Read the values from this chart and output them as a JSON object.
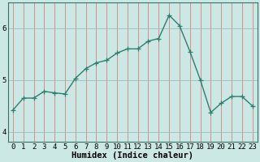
{
  "x": [
    0,
    1,
    2,
    3,
    4,
    5,
    6,
    7,
    8,
    9,
    10,
    11,
    12,
    13,
    14,
    15,
    16,
    17,
    18,
    19,
    20,
    21,
    22,
    23
  ],
  "y": [
    4.42,
    4.65,
    4.65,
    4.78,
    4.75,
    4.73,
    5.03,
    5.22,
    5.33,
    5.38,
    5.52,
    5.6,
    5.6,
    5.75,
    5.8,
    6.25,
    6.05,
    5.55,
    5.0,
    4.37,
    4.55,
    4.68,
    4.68,
    4.5
  ],
  "line_color": "#2e7d6e",
  "marker": "+",
  "marker_size": 4,
  "bg_color": "#cce8e4",
  "grid_color_v": "#e08080",
  "grid_color_h": "#9abcb8",
  "xlabel": "Humidex (Indice chaleur)",
  "ylim": [
    3.8,
    6.5
  ],
  "xlim": [
    -0.5,
    23.5
  ],
  "yticks": [
    4,
    5,
    6
  ],
  "xticks": [
    0,
    1,
    2,
    3,
    4,
    5,
    6,
    7,
    8,
    9,
    10,
    11,
    12,
    13,
    14,
    15,
    16,
    17,
    18,
    19,
    20,
    21,
    22,
    23
  ],
  "tick_fontsize": 6.5,
  "xlabel_fontsize": 7.5,
  "line_width": 1.0
}
